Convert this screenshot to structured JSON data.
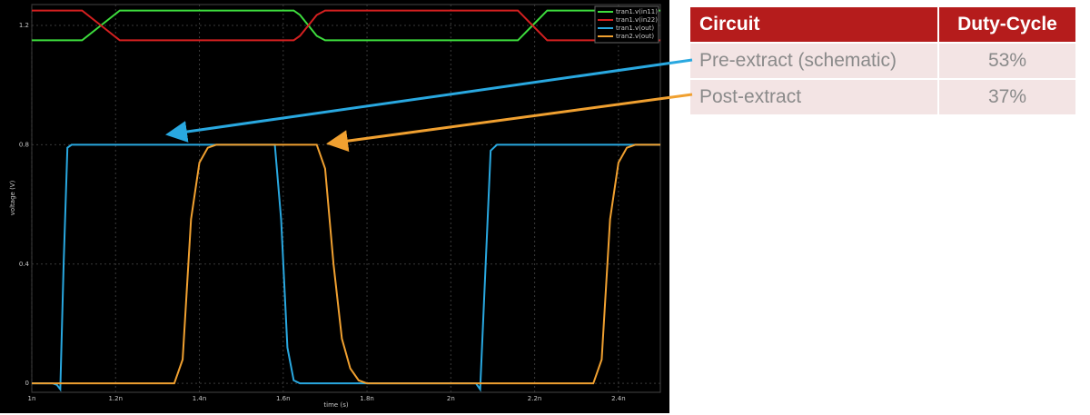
{
  "chart_data": {
    "type": "line",
    "xlabel": "time (s)",
    "ylabel": "voltage (V)",
    "x": [
      1e-09,
      1.05e-09,
      1.06e-09,
      1.068e-09,
      1.076e-09,
      1.085e-09,
      1.095e-09,
      1.12e-09,
      1.165e-09,
      1.21e-09,
      1.34e-09,
      1.36e-09,
      1.38e-09,
      1.4e-09,
      1.42e-09,
      1.44e-09,
      1.58e-09,
      1.595e-09,
      1.61e-09,
      1.625e-09,
      1.64e-09,
      1.66e-09,
      1.68e-09,
      1.7e-09,
      1.72e-09,
      1.74e-09,
      1.76e-09,
      1.78e-09,
      1.8e-09,
      2.06e-09,
      2.07e-09,
      2.08e-09,
      2.095e-09,
      2.11e-09,
      2.16e-09,
      2.195e-09,
      2.23e-09,
      2.34e-09,
      2.36e-09,
      2.38e-09,
      2.4e-09,
      2.42e-09,
      2.44e-09,
      2.5e-09
    ],
    "series": [
      {
        "name": "tran1.v(in11)",
        "color": "#3ddc3d",
        "values": [
          1.15,
          1.15,
          1.15,
          1.15,
          1.15,
          1.15,
          1.15,
          1.15,
          1.2,
          1.25,
          1.25,
          1.25,
          1.25,
          1.25,
          1.25,
          1.25,
          1.25,
          1.25,
          1.25,
          1.25,
          1.235,
          1.2,
          1.165,
          1.15,
          1.15,
          1.15,
          1.15,
          1.15,
          1.15,
          1.15,
          1.15,
          1.15,
          1.15,
          1.15,
          1.15,
          1.2,
          1.25,
          1.25,
          1.25,
          1.25,
          1.25,
          1.25,
          1.25,
          1.25
        ]
      },
      {
        "name": "tran1.v(in22)",
        "color": "#d42020",
        "values": [
          1.25,
          1.25,
          1.25,
          1.25,
          1.25,
          1.25,
          1.25,
          1.25,
          1.2,
          1.15,
          1.15,
          1.15,
          1.15,
          1.15,
          1.15,
          1.15,
          1.15,
          1.15,
          1.15,
          1.15,
          1.165,
          1.2,
          1.235,
          1.25,
          1.25,
          1.25,
          1.25,
          1.25,
          1.25,
          1.25,
          1.25,
          1.25,
          1.25,
          1.25,
          1.25,
          1.2,
          1.15,
          1.15,
          1.15,
          1.15,
          1.15,
          1.15,
          1.15,
          1.15
        ]
      },
      {
        "name": "tran1.v(out)",
        "color": "#29a8e0",
        "values": [
          0,
          0,
          -0.005,
          -0.02,
          0.4,
          0.79,
          0.8,
          0.8,
          0.8,
          0.8,
          0.8,
          0.8,
          0.8,
          0.8,
          0.8,
          0.8,
          0.8,
          0.55,
          0.12,
          0.01,
          0,
          0,
          0,
          0,
          0,
          0,
          0,
          0,
          0,
          0,
          -0.02,
          0.3,
          0.78,
          0.8,
          0.8,
          0.8,
          0.8,
          0.8,
          0.8,
          0.8,
          0.8,
          0.8,
          0.8,
          0.8
        ]
      },
      {
        "name": "tran2.v(out)",
        "color": "#f0a030",
        "values": [
          0,
          0,
          0,
          0,
          0,
          0,
          0,
          0,
          0,
          0,
          0,
          0.08,
          0.55,
          0.74,
          0.79,
          0.8,
          0.8,
          0.8,
          0.8,
          0.8,
          0.8,
          0.8,
          0.8,
          0.72,
          0.4,
          0.15,
          0.05,
          0.01,
          0,
          0,
          0,
          0,
          0,
          0,
          0,
          0,
          0,
          0,
          0.08,
          0.55,
          0.74,
          0.79,
          0.8,
          0.8
        ]
      }
    ],
    "xlim": [
      1e-09,
      2.5e-09
    ],
    "ylim": [
      -0.03,
      1.27
    ],
    "xticks": [
      {
        "value": 1e-09,
        "label": "1n"
      },
      {
        "value": 1.2e-09,
        "label": "1.2n"
      },
      {
        "value": 1.4e-09,
        "label": "1.4n"
      },
      {
        "value": 1.6e-09,
        "label": "1.6n"
      },
      {
        "value": 1.8e-09,
        "label": "1.8n"
      },
      {
        "value": 2e-09,
        "label": "2n"
      },
      {
        "value": 2.2e-09,
        "label": "2.2n"
      },
      {
        "value": 2.4e-09,
        "label": "2.4n"
      }
    ],
    "yticks": [
      0,
      0.4,
      0.8,
      1.2
    ],
    "grid": true,
    "legend": "top-right"
  },
  "table": {
    "header": [
      "Circuit",
      "Duty-Cycle"
    ],
    "rows": [
      [
        "Pre-extract (schematic)",
        "53%"
      ],
      [
        "Post-extract",
        "37%"
      ]
    ]
  }
}
